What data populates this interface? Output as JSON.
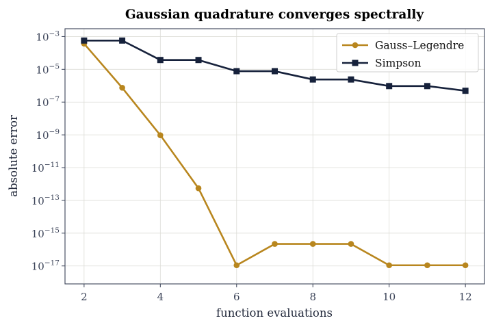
{
  "chart_data": {
    "type": "line",
    "title": "Gaussian quadrature converges spectrally",
    "xlabel": "function evaluations",
    "ylabel": "absolute error",
    "y_scale": "log",
    "xlim": [
      1.5,
      12.5
    ],
    "ylim": [
      8e-19,
      0.003
    ],
    "x_ticks": [
      2,
      4,
      6,
      8,
      10,
      12
    ],
    "y_tick_exponents": [
      -3,
      -5,
      -7,
      -9,
      -11,
      -13,
      -15,
      -17
    ],
    "y_tick_base": "10",
    "grid": true,
    "legend_position": "top-right",
    "series": [
      {
        "name": "Gauss–Legendre",
        "color": "#b8861e",
        "marker": "circle",
        "x": [
          2,
          3,
          4,
          5,
          6,
          7,
          8,
          9,
          10,
          11,
          12
        ],
        "y": [
          0.00037,
          7.5e-07,
          9.5e-10,
          5.5e-13,
          1.1e-17,
          2.2e-16,
          2.2e-16,
          2.2e-16,
          1.1e-17,
          1.1e-17,
          1.1e-17
        ]
      },
      {
        "name": "Simpson",
        "color": "#16213b",
        "marker": "square",
        "x": [
          2,
          3,
          4,
          5,
          6,
          7,
          8,
          9,
          10,
          11,
          12
        ],
        "y": [
          0.00057,
          0.00057,
          3.7e-05,
          3.7e-05,
          7.7e-06,
          7.7e-06,
          2.4e-06,
          2.4e-06,
          9.5e-07,
          9.5e-07,
          4.9e-07
        ]
      }
    ]
  }
}
